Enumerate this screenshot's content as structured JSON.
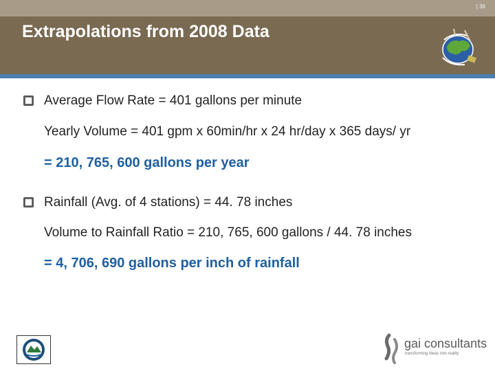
{
  "slide": {
    "page_number": "| 36",
    "title": "Extrapolations from 2008 Data"
  },
  "content": {
    "bullet1": "Average Flow Rate = 401 gallons per minute",
    "bullet1_detail": "Yearly Volume = 401 gpm x 60min/hr x 24 hr/day x 365 days/ yr",
    "bullet1_result": "= 210, 765, 600 gallons per year",
    "bullet2": "Rainfall (Avg. of 4 stations) = 44. 78 inches",
    "bullet2_detail": "Volume to Rainfall Ratio = 210, 765, 600 gallons /  44. 78 inches",
    "bullet2_result": "= 4, 706, 690 gallons per inch of rainfall"
  },
  "footer": {
    "company_name": "gai consultants",
    "company_tagline": "transforming ideas into reality"
  },
  "colors": {
    "header": "#7a6a52",
    "topbar": "#a89c89",
    "accent_line": "#4a7fb0",
    "result_text": "#1f5fa0"
  }
}
